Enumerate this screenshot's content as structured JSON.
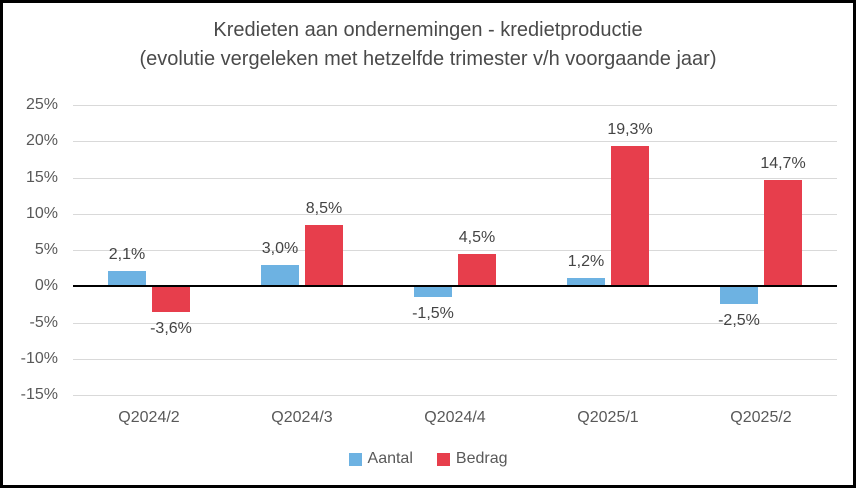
{
  "chart_data": {
    "type": "bar",
    "title_line1": "Kredieten aan ondernemingen - kredietproductie",
    "title_line2": "(evolutie vergeleken met hetzelfde trimester v/h voorgaande jaar)",
    "categories": [
      "Q2024/2",
      "Q2024/3",
      "Q2024/4",
      "Q2025/1",
      "Q2025/2"
    ],
    "series": [
      {
        "name": "Aantal",
        "color": "#6db2e2",
        "values": [
          2.1,
          3.0,
          -1.5,
          1.2,
          -2.5
        ],
        "labels": [
          "2,1%",
          "3,0%",
          "-1,5%",
          "1,2%",
          "-2,5%"
        ]
      },
      {
        "name": "Bedrag",
        "color": "#e73e4c",
        "values": [
          -3.6,
          8.5,
          4.5,
          19.3,
          14.7
        ],
        "labels": [
          "-3,6%",
          "8,5%",
          "4,5%",
          "19,3%",
          "14,7%"
        ]
      }
    ],
    "y_axis": {
      "min": -15,
      "max": 25,
      "step": 5,
      "tick_labels": [
        "25%",
        "20%",
        "15%",
        "10%",
        "5%",
        "0%",
        "-5%",
        "-10%",
        "-15%"
      ]
    },
    "grid": true,
    "legend_position": "bottom",
    "colors": {
      "gridline": "#d9d9d9",
      "axis": "#000000",
      "tick_text": "#595959",
      "data_label_text": "#444444",
      "title_text": "#4a4a4a"
    }
  }
}
